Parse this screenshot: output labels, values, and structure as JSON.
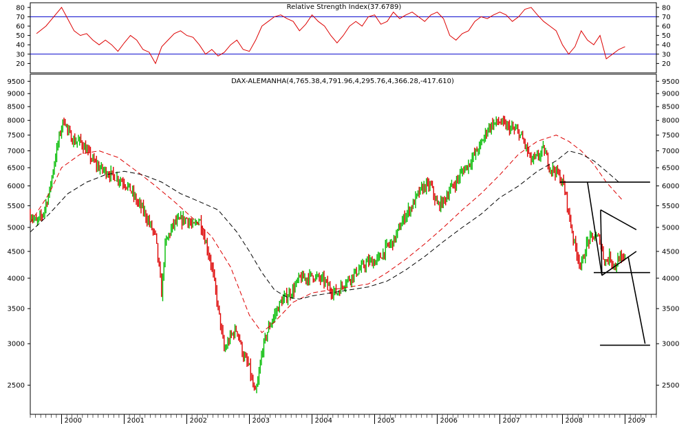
{
  "chart_data": [
    {
      "type": "line",
      "title": "Relative Strength Index(37.6789)",
      "ylim": [
        10,
        85
      ],
      "y_ticks": [
        20,
        30,
        40,
        50,
        60,
        70,
        80
      ],
      "reference_lines": [
        70,
        30
      ],
      "colors": {
        "line": "#dd0000",
        "reference": "#0000cc"
      },
      "series": [
        {
          "name": "",
          "x": [
            1999.6,
            1999.75,
            1999.9,
            2000.0,
            2000.08,
            2000.2,
            2000.3,
            2000.4,
            2000.5,
            2000.6,
            2000.7,
            2000.8,
            2000.9,
            2001.0,
            2001.1,
            2001.2,
            2001.3,
            2001.4,
            2001.5,
            2001.6,
            2001.7,
            2001.8,
            2001.9,
            2002.0,
            2002.1,
            2002.2,
            2002.3,
            2002.4,
            2002.5,
            2002.6,
            2002.7,
            2002.8,
            2002.9,
            2003.0,
            2003.1,
            2003.2,
            2003.3,
            2003.4,
            2003.5,
            2003.6,
            2003.7,
            2003.8,
            2003.9,
            2004.0,
            2004.1,
            2004.2,
            2004.3,
            2004.4,
            2004.5,
            2004.6,
            2004.7,
            2004.8,
            2004.9,
            2005.0,
            2005.1,
            2005.2,
            2005.3,
            2005.4,
            2005.5,
            2005.6,
            2005.7,
            2005.8,
            2005.9,
            2006.0,
            2006.1,
            2006.2,
            2006.3,
            2006.4,
            2006.5,
            2006.6,
            2006.7,
            2006.8,
            2006.9,
            2007.0,
            2007.1,
            2007.2,
            2007.3,
            2007.4,
            2007.5,
            2007.6,
            2007.7,
            2007.8,
            2007.9,
            2008.0,
            2008.1,
            2008.2,
            2008.3,
            2008.4,
            2008.5,
            2008.6,
            2008.7,
            2008.8,
            2008.9,
            2009.0
          ],
          "values": [
            52,
            60,
            72,
            80,
            70,
            55,
            50,
            52,
            45,
            40,
            45,
            40,
            33,
            42,
            50,
            45,
            35,
            32,
            20,
            38,
            45,
            52,
            55,
            50,
            48,
            40,
            30,
            35,
            28,
            32,
            40,
            45,
            35,
            33,
            45,
            60,
            65,
            70,
            72,
            68,
            65,
            55,
            62,
            72,
            65,
            60,
            50,
            42,
            50,
            60,
            65,
            60,
            70,
            72,
            62,
            65,
            75,
            68,
            72,
            75,
            70,
            65,
            72,
            75,
            68,
            50,
            45,
            52,
            55,
            65,
            70,
            68,
            72,
            75,
            72,
            65,
            70,
            78,
            80,
            72,
            65,
            60,
            55,
            40,
            30,
            38,
            55,
            45,
            40,
            50,
            25,
            30,
            35,
            38
          ]
        }
      ]
    },
    {
      "type": "line",
      "title": "DAX-ALEMANHA(4,765.38,4,791.96,4,295.76,4,366.28,-417.610)",
      "scale": "log",
      "ylim": [
        2200,
        9800
      ],
      "y_ticks": [
        2500,
        3000,
        3500,
        4000,
        4500,
        5000,
        5500,
        6000,
        6500,
        7000,
        7500,
        8000,
        8500,
        9000,
        9500
      ],
      "x_ticks": [
        "2000",
        "2001",
        "2002",
        "2003",
        "2004",
        "2005",
        "2006",
        "2007",
        "2008",
        "2009"
      ],
      "colors": {
        "up_bar": "#00bb00",
        "down_bar": "#dd0000",
        "ma_short": "#dd0000",
        "ma_long": "#000000",
        "drawings": "#000000"
      },
      "series": [
        {
          "name": "",
          "x": [
            1999.5,
            1999.6,
            1999.7,
            1999.8,
            1999.9,
            2000.0,
            2000.05,
            2000.1,
            2000.2,
            2000.3,
            2000.4,
            2000.5,
            2000.6,
            2000.7,
            2000.8,
            2000.9,
            2001.0,
            2001.1,
            2001.2,
            2001.3,
            2001.4,
            2001.5,
            2001.6,
            2001.65,
            2001.7,
            2001.8,
            2001.9,
            2002.0,
            2002.1,
            2002.2,
            2002.3,
            2002.4,
            2002.5,
            2002.6,
            2002.7,
            2002.8,
            2002.9,
            2003.0,
            2003.05,
            2003.1,
            2003.15,
            2003.2,
            2003.3,
            2003.4,
            2003.5,
            2003.6,
            2003.7,
            2003.8,
            2003.9,
            2004.0,
            2004.1,
            2004.2,
            2004.3,
            2004.4,
            2004.5,
            2004.6,
            2004.7,
            2004.8,
            2004.9,
            2005.0,
            2005.1,
            2005.2,
            2005.3,
            2005.4,
            2005.5,
            2005.6,
            2005.7,
            2005.8,
            2005.9,
            2006.0,
            2006.1,
            2006.2,
            2006.3,
            2006.4,
            2006.5,
            2006.6,
            2006.7,
            2006.8,
            2006.9,
            2007.0,
            2007.1,
            2007.2,
            2007.3,
            2007.4,
            2007.5,
            2007.6,
            2007.7,
            2007.8,
            2007.9,
            2008.0,
            2008.05,
            2008.1,
            2008.2,
            2008.3,
            2008.4,
            2008.5,
            2008.6,
            2008.65,
            2008.7,
            2008.75,
            2008.8,
            2008.85,
            2008.9,
            2008.95,
            2009.0
          ],
          "values": [
            5300,
            5100,
            5300,
            5800,
            6800,
            7800,
            8050,
            7600,
            7300,
            7300,
            7000,
            6700,
            6500,
            6400,
            6300,
            6200,
            6100,
            5900,
            5600,
            5400,
            5100,
            4800,
            3700,
            4600,
            4800,
            5100,
            5150,
            5200,
            5000,
            5200,
            4700,
            4200,
            3500,
            2900,
            3100,
            3200,
            2850,
            2700,
            2500,
            2400,
            2600,
            2900,
            3200,
            3400,
            3600,
            3700,
            3800,
            4000,
            4000,
            4050,
            4000,
            3950,
            3800,
            3750,
            3900,
            4000,
            4100,
            4200,
            4300,
            4300,
            4400,
            4600,
            4700,
            5000,
            5300,
            5500,
            5800,
            6000,
            6000,
            5500,
            5600,
            5900,
            6100,
            6400,
            6600,
            6900,
            7200,
            7700,
            7900,
            7950,
            7800,
            7700,
            7600,
            7200,
            6700,
            6800,
            7050,
            6500,
            6400,
            6100,
            5800,
            5300,
            4600,
            4200,
            4700,
            4800,
            4750,
            4400,
            4300,
            4400,
            4300,
            4200,
            4400,
            4300,
            4366
          ]
        },
        {
          "name": "",
          "x": [
            1999.5,
            1999.8,
            2000.0,
            2000.3,
            2000.6,
            2000.9,
            2001.2,
            2001.5,
            2001.8,
            2002.1,
            2002.4,
            2002.7,
            2003.0,
            2003.2,
            2003.4,
            2003.7,
            2004.0,
            2004.3,
            2004.6,
            2004.9,
            2005.2,
            2005.5,
            2005.8,
            2006.1,
            2006.4,
            2006.7,
            2007.0,
            2007.3,
            2007.6,
            2007.9,
            2008.1,
            2008.3,
            2008.5,
            2008.7,
            2008.95
          ],
          "values": [
            5100,
            5800,
            6500,
            6900,
            7000,
            6800,
            6400,
            6000,
            5600,
            5200,
            4800,
            4200,
            3400,
            3150,
            3300,
            3600,
            3750,
            3800,
            3850,
            3900,
            4100,
            4350,
            4650,
            5000,
            5400,
            5800,
            6300,
            6900,
            7300,
            7500,
            7300,
            7000,
            6600,
            6100,
            5650
          ]
        },
        {
          "name": "",
          "x": [
            1999.5,
            1999.8,
            2000.1,
            2000.4,
            2000.7,
            2001.0,
            2001.3,
            2001.6,
            2001.9,
            2002.2,
            2002.5,
            2002.8,
            2003.0,
            2003.2,
            2003.4,
            2003.6,
            2003.8,
            2004.0,
            2004.3,
            2004.6,
            2004.9,
            2005.2,
            2005.5,
            2005.8,
            2006.1,
            2006.4,
            2006.7,
            2007.0,
            2007.3,
            2007.6,
            2007.9,
            2008.1,
            2008.3,
            2008.5,
            2008.7,
            2008.9
          ],
          "values": [
            4900,
            5300,
            5800,
            6100,
            6300,
            6400,
            6300,
            6100,
            5800,
            5600,
            5400,
            4900,
            4500,
            4100,
            3800,
            3680,
            3650,
            3700,
            3750,
            3800,
            3850,
            3950,
            4150,
            4400,
            4700,
            5000,
            5300,
            5700,
            6000,
            6400,
            6700,
            7000,
            6900,
            6700,
            6400,
            6100
          ]
        }
      ],
      "drawings": [
        {
          "x1": 2007.96,
          "y1": 6100,
          "x2": 2009.4,
          "y2": 6100
        },
        {
          "x1": 2008.4,
          "y1": 6100,
          "x2": 2008.63,
          "y2": 4050
        },
        {
          "x1": 2008.61,
          "y1": 5400,
          "x2": 2008.63,
          "y2": 4050
        },
        {
          "x1": 2008.61,
          "y1": 5400,
          "x2": 2009.18,
          "y2": 4950
        },
        {
          "x1": 2008.63,
          "y1": 4050,
          "x2": 2009.18,
          "y2": 4500
        },
        {
          "x1": 2008.5,
          "y1": 4100,
          "x2": 2009.4,
          "y2": 4100
        },
        {
          "x1": 2009.05,
          "y1": 4400,
          "x2": 2009.32,
          "y2": 3000
        },
        {
          "x1": 2008.6,
          "y1": 2980,
          "x2": 2009.4,
          "y2": 2980
        }
      ]
    }
  ]
}
